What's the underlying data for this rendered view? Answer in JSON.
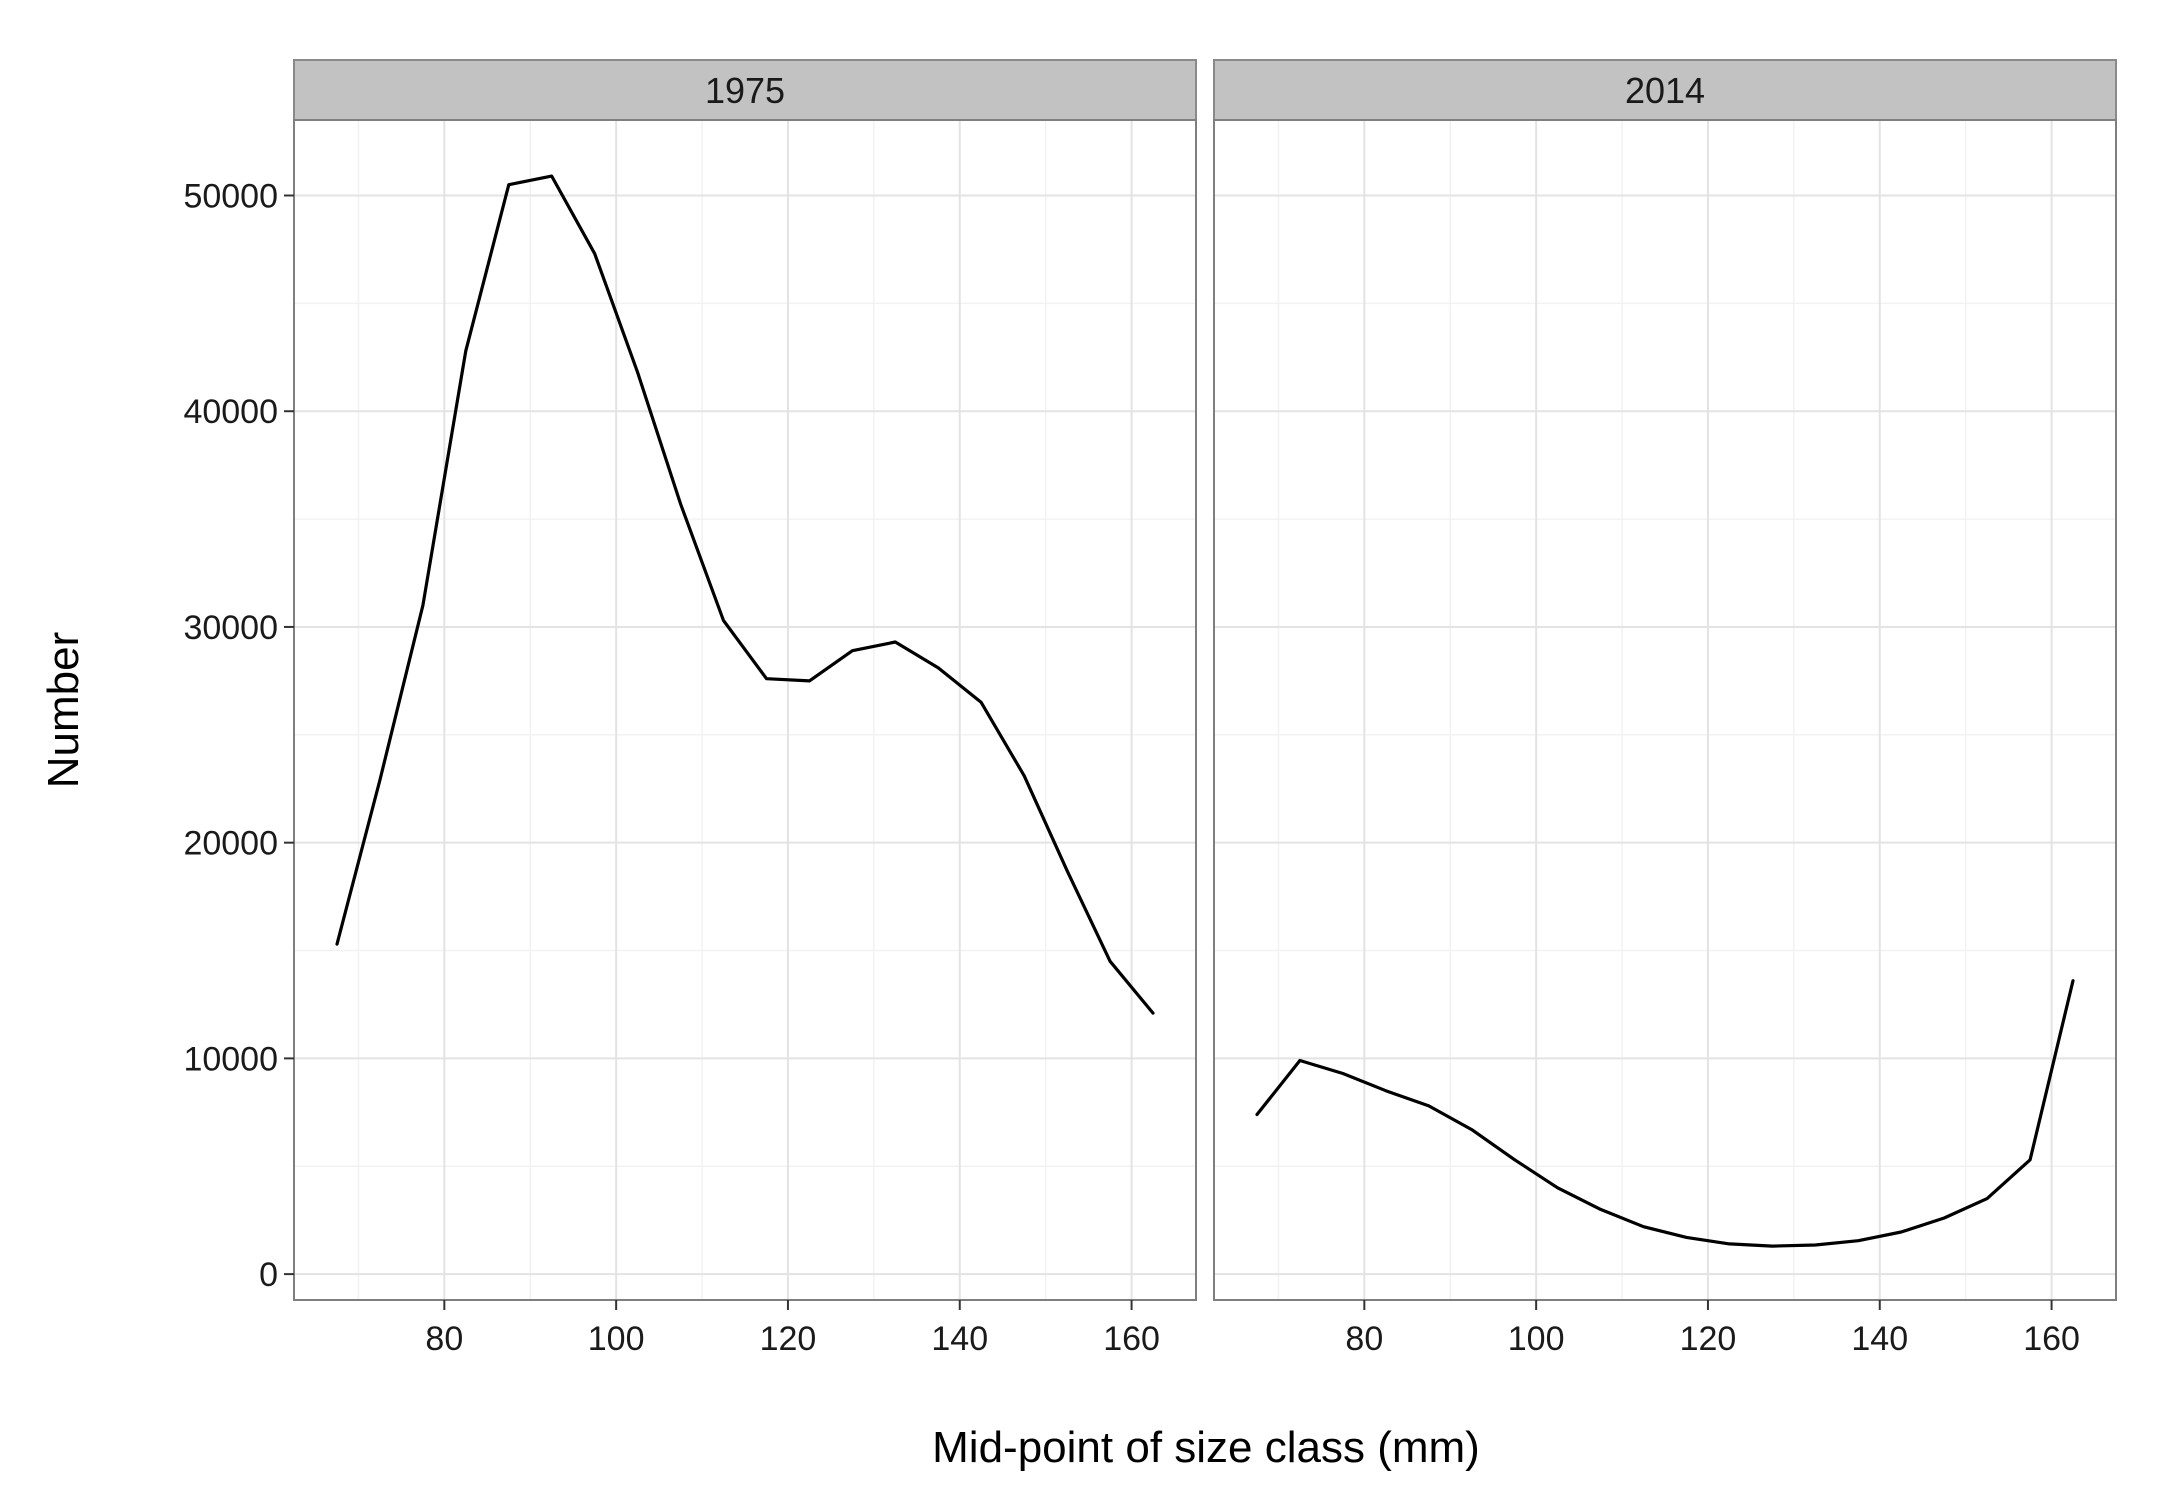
{
  "chart_data": {
    "type": "line",
    "xlabel": "Mid-point of size class (mm)",
    "ylabel": "Number",
    "xlim": [
      62.5,
      167.5
    ],
    "ylim": [
      -1200,
      53500
    ],
    "x_ticks": [
      80,
      100,
      120,
      140,
      160
    ],
    "y_ticks": [
      0,
      10000,
      20000,
      30000,
      40000,
      50000
    ],
    "grid": true,
    "line_color": "#000000",
    "panels": [
      {
        "facet": "1975",
        "x": [
          67.5,
          72.5,
          77.5,
          82.5,
          87.5,
          92.5,
          97.5,
          102.5,
          107.5,
          112.5,
          117.5,
          122.5,
          127.5,
          132.5,
          137.5,
          142.5,
          147.5,
          152.5,
          157.5,
          162.5
        ],
        "y": [
          15300,
          22900,
          31000,
          42800,
          50500,
          50900,
          47300,
          41800,
          35700,
          30300,
          27600,
          27500,
          28900,
          29300,
          28100,
          26500,
          23100,
          18700,
          14500,
          12100
        ]
      },
      {
        "facet": "2014",
        "x": [
          67.5,
          72.5,
          77.5,
          82.5,
          87.5,
          92.5,
          97.5,
          102.5,
          107.5,
          112.5,
          117.5,
          122.5,
          127.5,
          132.5,
          137.5,
          142.5,
          147.5,
          152.5,
          157.5,
          162.5
        ],
        "y": [
          7400,
          9900,
          9300,
          8500,
          7800,
          6700,
          5300,
          4000,
          3000,
          2200,
          1700,
          1400,
          1300,
          1350,
          1550,
          1950,
          2600,
          3500,
          5300,
          13600
        ]
      }
    ]
  }
}
